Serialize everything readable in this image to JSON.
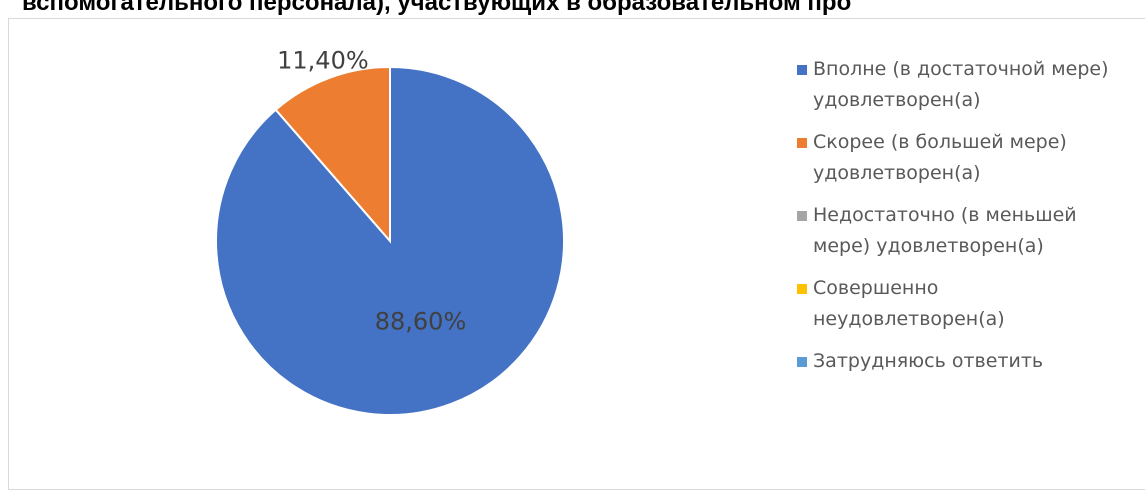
{
  "chart_data": {
    "type": "pie",
    "title": "вспомогательного персонала), участвующих в образовательном про",
    "categories": [
      "Вполне (в достаточной мере) удовлетворен(а)",
      "Скорее (в большей мере) удовлетворен(а)",
      "Недостаточно (в меньшей мере) удовлетворен(а)",
      "Совершенно неудовлетворен(а)",
      "Затрудняюсь ответить"
    ],
    "values": [
      88.6,
      11.4,
      0,
      0,
      0
    ],
    "value_labels": [
      "88,60%",
      "11,40%",
      null,
      null,
      null
    ],
    "colors": [
      "#4472c4",
      "#ed7d31",
      "#a5a5a5",
      "#ffc000",
      "#5b9bd5"
    ],
    "legend": "right"
  }
}
